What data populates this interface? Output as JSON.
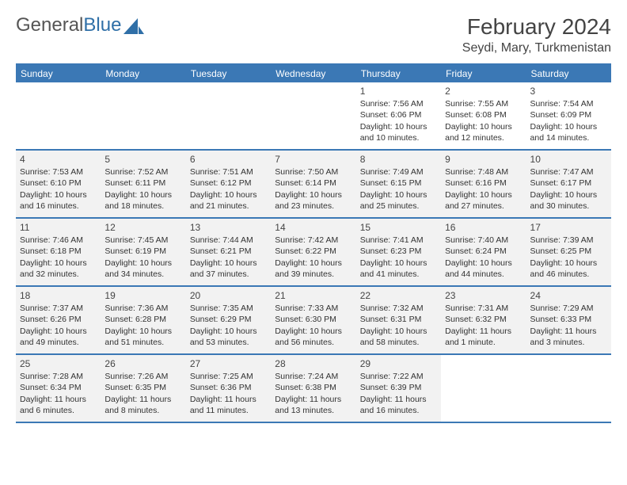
{
  "brand": {
    "part1": "General",
    "part2": "Blue"
  },
  "header": {
    "month": "February 2024",
    "location": "Seydi, Mary, Turkmenistan"
  },
  "colors": {
    "accent": "#3b78b5",
    "shade": "#f2f2f2",
    "text": "#333333"
  },
  "weekdays": [
    "Sunday",
    "Monday",
    "Tuesday",
    "Wednesday",
    "Thursday",
    "Friday",
    "Saturday"
  ],
  "weeks": [
    {
      "shaded": false,
      "days": [
        null,
        null,
        null,
        null,
        {
          "n": "1",
          "sunrise": "7:56 AM",
          "sunset": "6:06 PM",
          "dl": "10 hours and 10 minutes."
        },
        {
          "n": "2",
          "sunrise": "7:55 AM",
          "sunset": "6:08 PM",
          "dl": "10 hours and 12 minutes."
        },
        {
          "n": "3",
          "sunrise": "7:54 AM",
          "sunset": "6:09 PM",
          "dl": "10 hours and 14 minutes."
        }
      ]
    },
    {
      "shaded": true,
      "days": [
        {
          "n": "4",
          "sunrise": "7:53 AM",
          "sunset": "6:10 PM",
          "dl": "10 hours and 16 minutes."
        },
        {
          "n": "5",
          "sunrise": "7:52 AM",
          "sunset": "6:11 PM",
          "dl": "10 hours and 18 minutes."
        },
        {
          "n": "6",
          "sunrise": "7:51 AM",
          "sunset": "6:12 PM",
          "dl": "10 hours and 21 minutes."
        },
        {
          "n": "7",
          "sunrise": "7:50 AM",
          "sunset": "6:14 PM",
          "dl": "10 hours and 23 minutes."
        },
        {
          "n": "8",
          "sunrise": "7:49 AM",
          "sunset": "6:15 PM",
          "dl": "10 hours and 25 minutes."
        },
        {
          "n": "9",
          "sunrise": "7:48 AM",
          "sunset": "6:16 PM",
          "dl": "10 hours and 27 minutes."
        },
        {
          "n": "10",
          "sunrise": "7:47 AM",
          "sunset": "6:17 PM",
          "dl": "10 hours and 30 minutes."
        }
      ]
    },
    {
      "shaded": true,
      "days": [
        {
          "n": "11",
          "sunrise": "7:46 AM",
          "sunset": "6:18 PM",
          "dl": "10 hours and 32 minutes."
        },
        {
          "n": "12",
          "sunrise": "7:45 AM",
          "sunset": "6:19 PM",
          "dl": "10 hours and 34 minutes."
        },
        {
          "n": "13",
          "sunrise": "7:44 AM",
          "sunset": "6:21 PM",
          "dl": "10 hours and 37 minutes."
        },
        {
          "n": "14",
          "sunrise": "7:42 AM",
          "sunset": "6:22 PM",
          "dl": "10 hours and 39 minutes."
        },
        {
          "n": "15",
          "sunrise": "7:41 AM",
          "sunset": "6:23 PM",
          "dl": "10 hours and 41 minutes."
        },
        {
          "n": "16",
          "sunrise": "7:40 AM",
          "sunset": "6:24 PM",
          "dl": "10 hours and 44 minutes."
        },
        {
          "n": "17",
          "sunrise": "7:39 AM",
          "sunset": "6:25 PM",
          "dl": "10 hours and 46 minutes."
        }
      ]
    },
    {
      "shaded": true,
      "days": [
        {
          "n": "18",
          "sunrise": "7:37 AM",
          "sunset": "6:26 PM",
          "dl": "10 hours and 49 minutes."
        },
        {
          "n": "19",
          "sunrise": "7:36 AM",
          "sunset": "6:28 PM",
          "dl": "10 hours and 51 minutes."
        },
        {
          "n": "20",
          "sunrise": "7:35 AM",
          "sunset": "6:29 PM",
          "dl": "10 hours and 53 minutes."
        },
        {
          "n": "21",
          "sunrise": "7:33 AM",
          "sunset": "6:30 PM",
          "dl": "10 hours and 56 minutes."
        },
        {
          "n": "22",
          "sunrise": "7:32 AM",
          "sunset": "6:31 PM",
          "dl": "10 hours and 58 minutes."
        },
        {
          "n": "23",
          "sunrise": "7:31 AM",
          "sunset": "6:32 PM",
          "dl": "11 hours and 1 minute."
        },
        {
          "n": "24",
          "sunrise": "7:29 AM",
          "sunset": "6:33 PM",
          "dl": "11 hours and 3 minutes."
        }
      ]
    },
    {
      "shaded": true,
      "days": [
        {
          "n": "25",
          "sunrise": "7:28 AM",
          "sunset": "6:34 PM",
          "dl": "11 hours and 6 minutes."
        },
        {
          "n": "26",
          "sunrise": "7:26 AM",
          "sunset": "6:35 PM",
          "dl": "11 hours and 8 minutes."
        },
        {
          "n": "27",
          "sunrise": "7:25 AM",
          "sunset": "6:36 PM",
          "dl": "11 hours and 11 minutes."
        },
        {
          "n": "28",
          "sunrise": "7:24 AM",
          "sunset": "6:38 PM",
          "dl": "11 hours and 13 minutes."
        },
        {
          "n": "29",
          "sunrise": "7:22 AM",
          "sunset": "6:39 PM",
          "dl": "11 hours and 16 minutes."
        },
        null,
        null
      ]
    }
  ],
  "labels": {
    "sunrise": "Sunrise:",
    "sunset": "Sunset:",
    "daylight": "Daylight:"
  }
}
